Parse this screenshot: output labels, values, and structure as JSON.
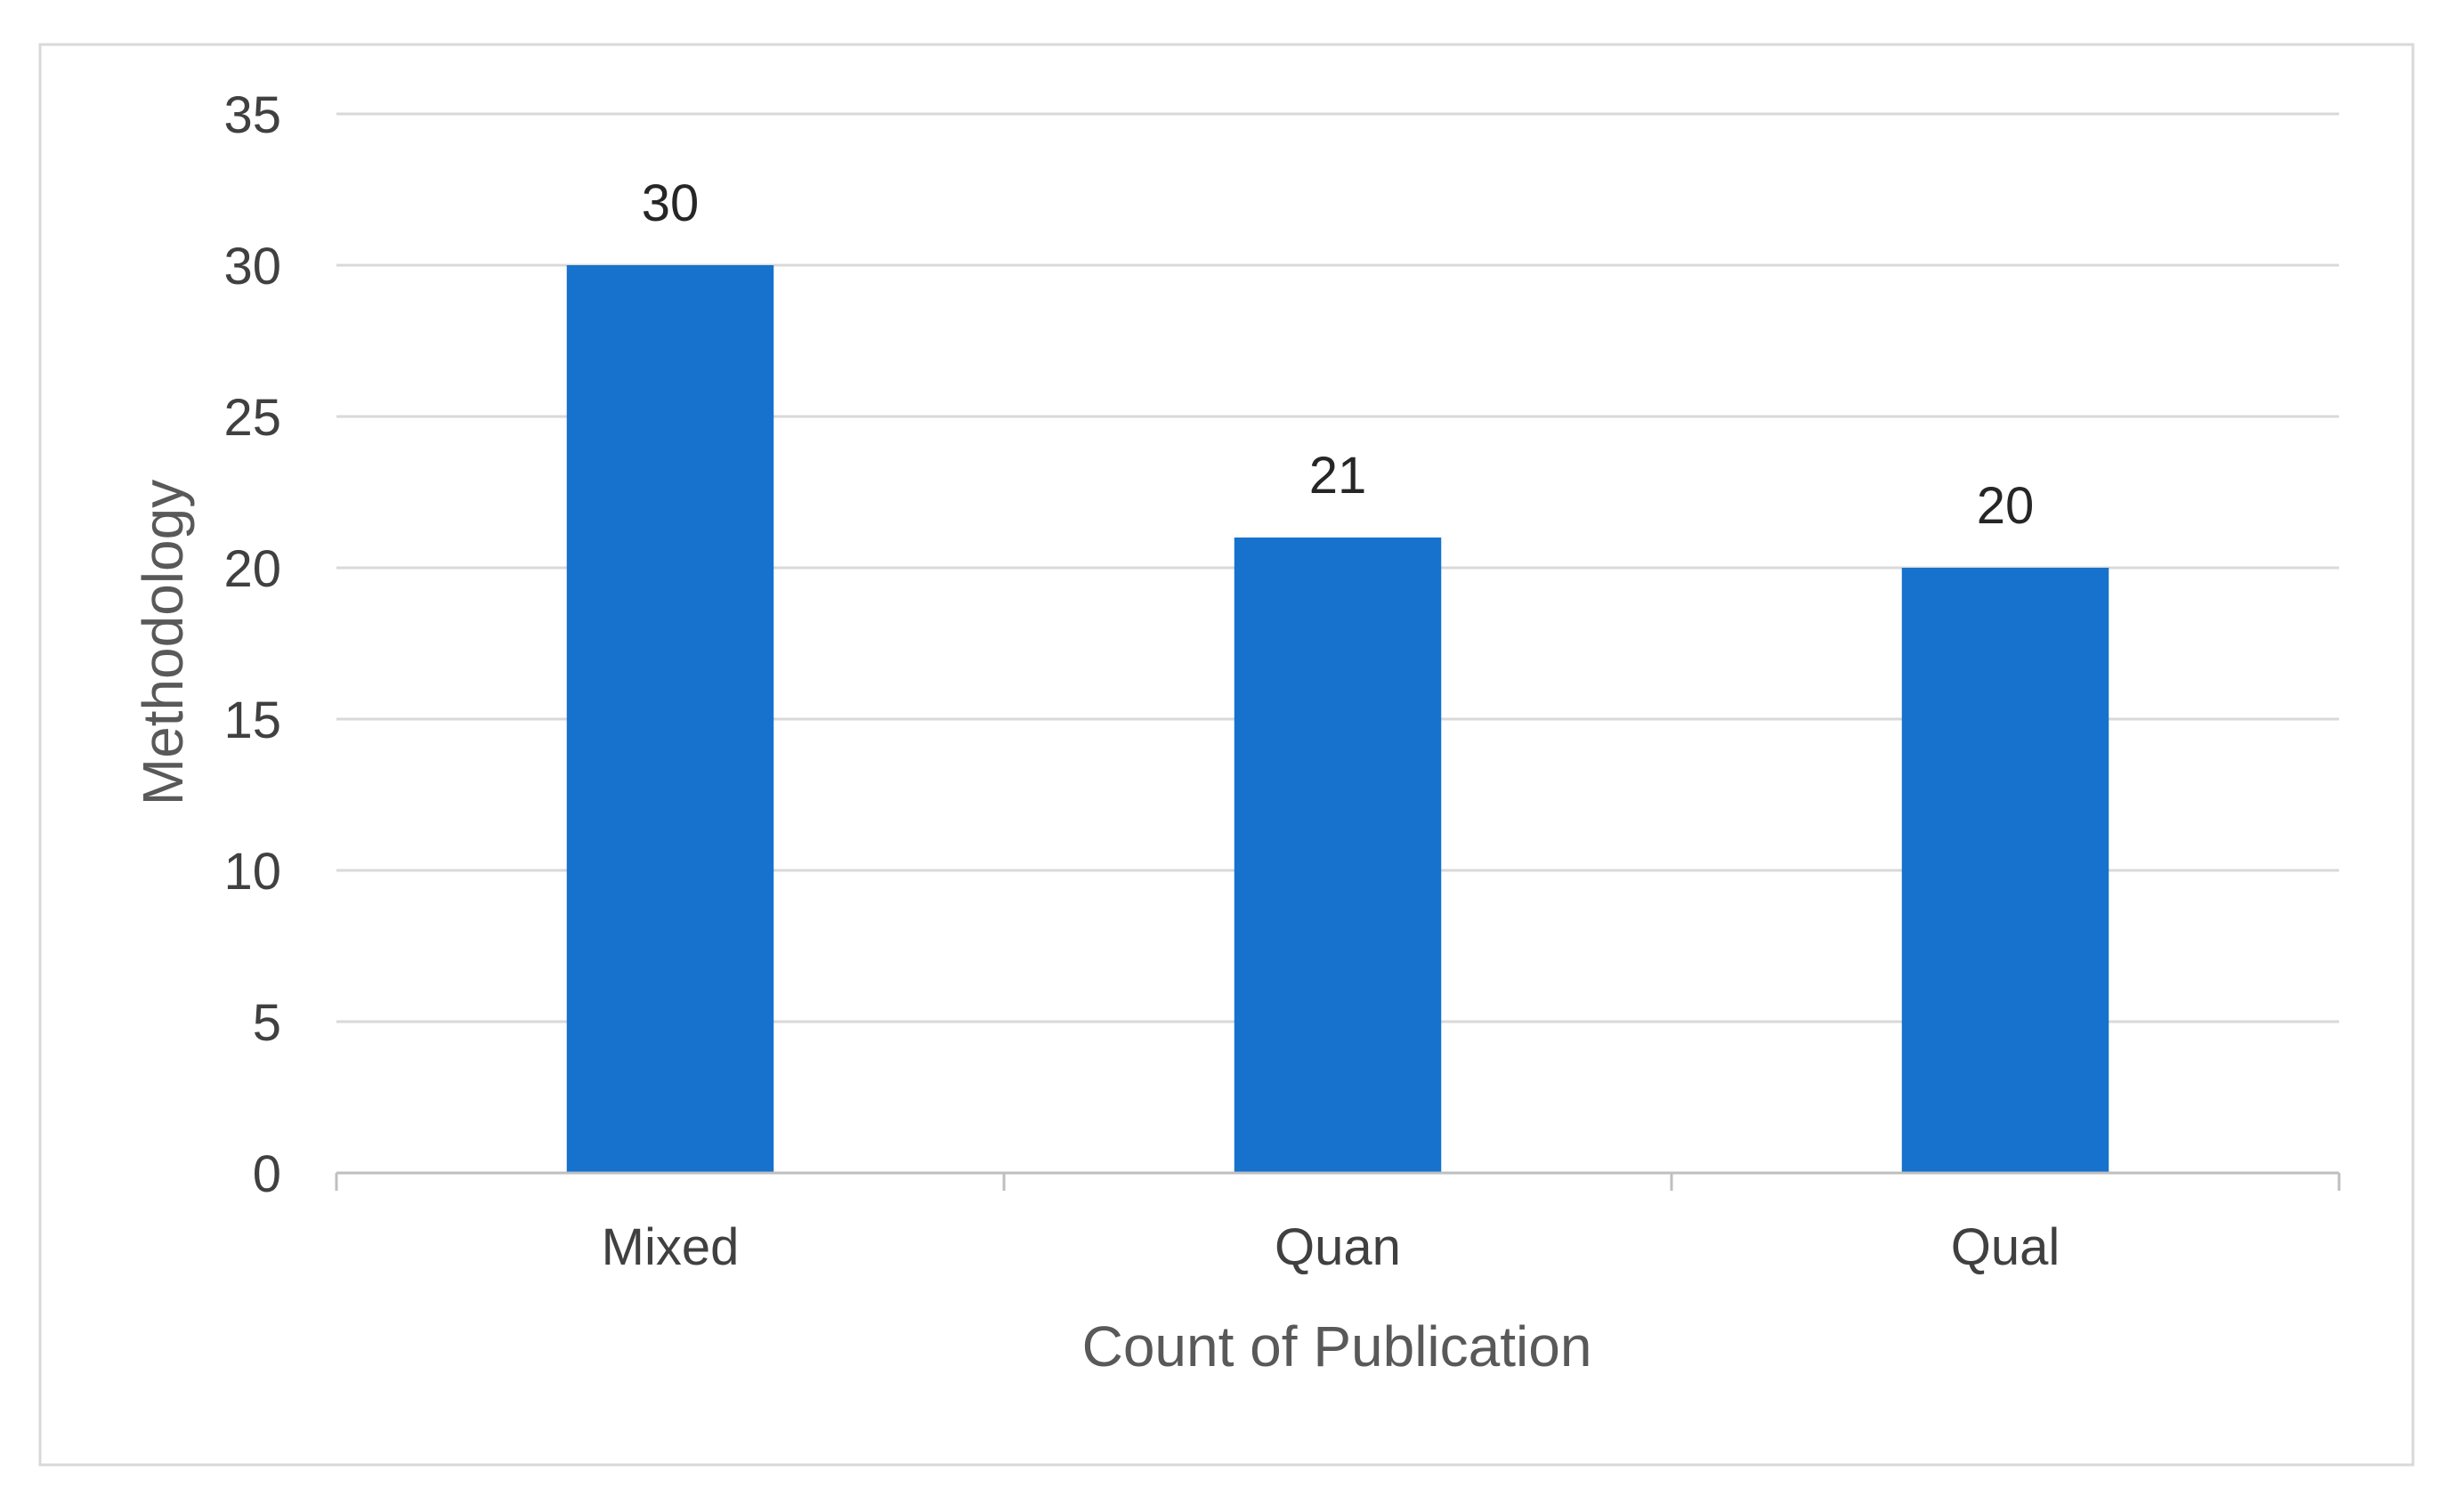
{
  "chart_data": {
    "type": "bar",
    "categories": [
      "Mixed",
      "Quan",
      "Qual"
    ],
    "values": [
      30,
      21,
      20
    ],
    "data_labels": [
      "30",
      "21",
      "20"
    ],
    "title": "",
    "xlabel": "Count of Publication",
    "ylabel": "Methodology",
    "ylim": [
      0,
      35
    ],
    "yticks": [
      0,
      5,
      10,
      15,
      20,
      25,
      30,
      35
    ],
    "grid": true,
    "legend": "none",
    "colors": {
      "bar": "#1672CC",
      "grid": "#D9D9D9",
      "axis": "#BFBFBF",
      "text": "#404040",
      "label_text": "#262626",
      "border": "#D9D9D9"
    }
  }
}
